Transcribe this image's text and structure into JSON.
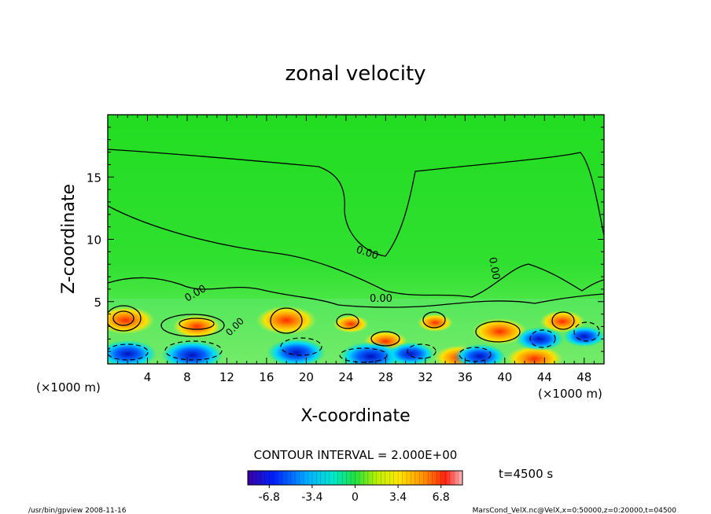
{
  "chart_data": {
    "type": "heatmap",
    "title": "zonal velocity",
    "xlabel": "X-coordinate",
    "ylabel": "Z-coordinate",
    "x_unit": "(×1000 m)",
    "y_unit": "(×1000 m)",
    "xlim": [
      0,
      50
    ],
    "ylim": [
      0,
      20
    ],
    "x_ticks": [
      4,
      8,
      12,
      16,
      20,
      24,
      28,
      32,
      36,
      40,
      44,
      48
    ],
    "y_ticks": [
      5,
      10,
      15
    ],
    "contour_interval_label": "CONTOUR INTERVAL = 2.000E+00",
    "contour_labels": [
      "0.00",
      "0.00",
      "0.00",
      "0.00",
      "0.00"
    ],
    "time_label": "t=4500 s",
    "colorbar": {
      "min": -8.5,
      "max": 8.5,
      "tick_labels": [
        "-6.8",
        "-3.4",
        "0",
        "3.4",
        "6.8"
      ],
      "tick_values": [
        -6.8,
        -3.4,
        0,
        3.4,
        6.8
      ]
    },
    "features": [
      {
        "kind": "positive",
        "x": 1.8,
        "z": 3.5,
        "value": 6.5
      },
      {
        "kind": "positive",
        "x": 9.0,
        "z": 3.0,
        "value": 5.0
      },
      {
        "kind": "positive",
        "x": 18.0,
        "z": 3.5,
        "value": 6.8
      },
      {
        "kind": "positive",
        "x": 24.5,
        "z": 3.2,
        "value": 3.0
      },
      {
        "kind": "positive",
        "x": 28.0,
        "z": 1.8,
        "value": 4.2
      },
      {
        "kind": "positive",
        "x": 33.0,
        "z": 3.3,
        "value": 3.0
      },
      {
        "kind": "positive",
        "x": 35.5,
        "z": 0.5,
        "value": 5.5
      },
      {
        "kind": "positive",
        "x": 39.5,
        "z": 2.6,
        "value": 6.0
      },
      {
        "kind": "positive",
        "x": 43.0,
        "z": 0.4,
        "value": 6.2
      },
      {
        "kind": "positive",
        "x": 45.8,
        "z": 3.4,
        "value": 4.5
      },
      {
        "kind": "negative",
        "x": 2.0,
        "z": 0.8,
        "value": -6.5
      },
      {
        "kind": "negative",
        "x": 8.5,
        "z": 0.7,
        "value": -7.0
      },
      {
        "kind": "negative",
        "x": 19.0,
        "z": 0.9,
        "value": -6.5
      },
      {
        "kind": "negative",
        "x": 26.5,
        "z": 0.6,
        "value": -7.2
      },
      {
        "kind": "negative",
        "x": 30.5,
        "z": 0.8,
        "value": -5.0
      },
      {
        "kind": "negative",
        "x": 37.5,
        "z": 0.6,
        "value": -5.5
      },
      {
        "kind": "negative",
        "x": 43.5,
        "z": 2.0,
        "value": -5.0
      },
      {
        "kind": "negative",
        "x": 48.0,
        "z": 2.2,
        "value": -4.0
      }
    ]
  },
  "footer": {
    "left": "/usr/bin/gpview   2008-11-16",
    "right": "MarsCond_VelX.nc@VelX,x=0:50000,z=0:20000,t=04500"
  }
}
